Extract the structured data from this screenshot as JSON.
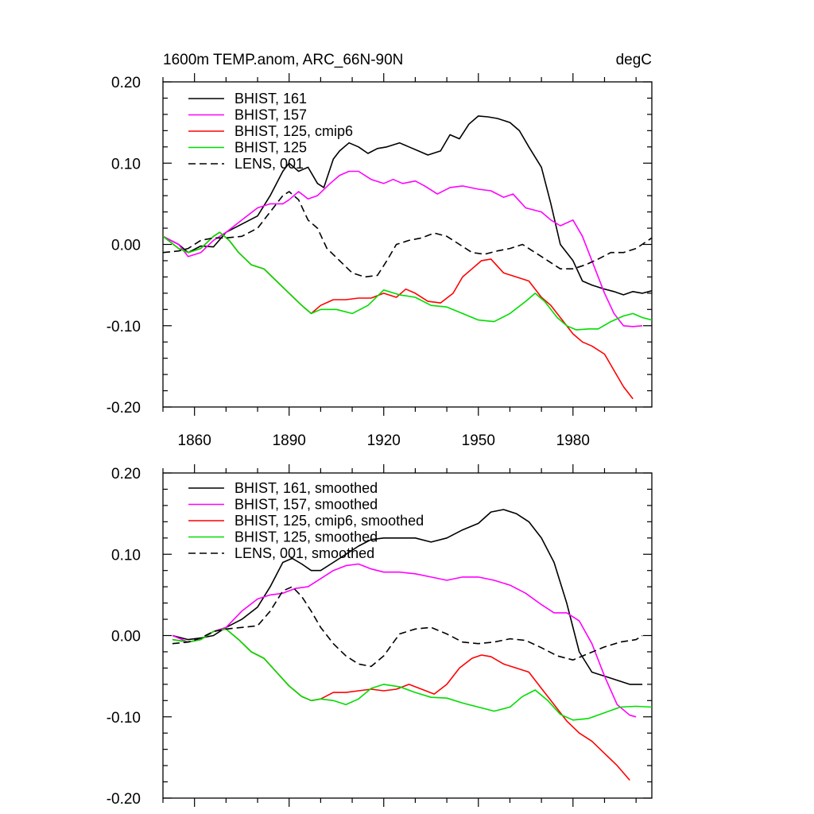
{
  "chart_data": [
    {
      "type": "line",
      "title": "1600m TEMP.anom, ARC_66N-90N",
      "units": "degC",
      "xlabel": "",
      "ylabel": "",
      "xlim": [
        1850,
        2005
      ],
      "ylim": [
        -0.2,
        0.2
      ],
      "xticks": [
        1860,
        1890,
        1920,
        1950,
        1980
      ],
      "xtick_labels": [
        "1860",
        "1890",
        "1920",
        "1950",
        "1980"
      ],
      "yticks": [
        0.2,
        0.1,
        0.0,
        -0.1,
        -0.2
      ],
      "ytick_labels": [
        "0.20",
        "0.10",
        "0.00",
        "-0.10",
        "-0.20"
      ],
      "legend_position": "top-left",
      "series": [
        {
          "name": "BHIST, 161",
          "color": "#000000",
          "dash": "solid",
          "x": [
            1850,
            1855,
            1858,
            1862,
            1866,
            1870,
            1875,
            1880,
            1884,
            1888,
            1890,
            1893,
            1896,
            1899,
            1901,
            1904,
            1906,
            1909,
            1912,
            1915,
            1918,
            1921,
            1925,
            1928,
            1931,
            1934,
            1938,
            1941,
            1944,
            1947,
            1950,
            1953,
            1956,
            1960,
            1963,
            1966,
            1970,
            1973,
            1976,
            1980,
            1983,
            1986,
            1990,
            1993,
            1996,
            1999,
            2002,
            2005
          ],
          "values": [
            0.01,
            0.0,
            -0.01,
            -0.002,
            -0.003,
            0.015,
            0.025,
            0.035,
            0.06,
            0.09,
            0.1,
            0.09,
            0.095,
            0.075,
            0.07,
            0.105,
            0.115,
            0.125,
            0.12,
            0.112,
            0.118,
            0.12,
            0.125,
            0.12,
            0.115,
            0.11,
            0.115,
            0.135,
            0.13,
            0.148,
            0.158,
            0.157,
            0.155,
            0.15,
            0.14,
            0.12,
            0.095,
            0.05,
            0.0,
            -0.02,
            -0.045,
            -0.05,
            -0.055,
            -0.058,
            -0.062,
            -0.058,
            -0.06,
            -0.057
          ]
        },
        {
          "name": "BHIST, 157",
          "color": "#ff00ff",
          "dash": "solid",
          "x": [
            1850,
            1855,
            1858,
            1862,
            1866,
            1870,
            1875,
            1880,
            1884,
            1888,
            1890,
            1893,
            1896,
            1899,
            1903,
            1906,
            1909,
            1912,
            1916,
            1920,
            1923,
            1926,
            1930,
            1933,
            1937,
            1941,
            1945,
            1950,
            1954,
            1958,
            1961,
            1965,
            1970,
            1973,
            1976,
            1980,
            1983,
            1986,
            1990,
            1993,
            1996,
            1999,
            2002
          ],
          "values": [
            0.01,
            0.0,
            -0.015,
            -0.01,
            0.005,
            0.015,
            0.03,
            0.045,
            0.05,
            0.05,
            0.055,
            0.065,
            0.056,
            0.06,
            0.075,
            0.085,
            0.09,
            0.09,
            0.08,
            0.075,
            0.08,
            0.075,
            0.078,
            0.072,
            0.062,
            0.07,
            0.072,
            0.068,
            0.066,
            0.058,
            0.062,
            0.045,
            0.04,
            0.03,
            0.023,
            0.03,
            0.01,
            -0.02,
            -0.06,
            -0.085,
            -0.1,
            -0.101,
            -0.1
          ]
        },
        {
          "name": "BHIST, 125, cmip6",
          "color": "#ff0000",
          "dash": "solid",
          "x": [
            1850,
            1855,
            1858,
            1862,
            1866,
            1868,
            1871,
            1874,
            1878,
            1882,
            1886,
            1890,
            1894,
            1897,
            1900,
            1904,
            1908,
            1912,
            1916,
            1920,
            1924,
            1927,
            1930,
            1934,
            1938,
            1942,
            1945,
            1948,
            1951,
            1954,
            1958,
            1962,
            1966,
            1970,
            1973,
            1976,
            1980,
            1983,
            1986,
            1990,
            1993,
            1996,
            1999
          ],
          "values": [
            0.01,
            -0.005,
            -0.01,
            -0.005,
            0.01,
            0.015,
            0.005,
            -0.01,
            -0.025,
            -0.03,
            -0.045,
            -0.06,
            -0.075,
            -0.085,
            -0.075,
            -0.068,
            -0.068,
            -0.066,
            -0.066,
            -0.06,
            -0.065,
            -0.055,
            -0.06,
            -0.07,
            -0.072,
            -0.06,
            -0.04,
            -0.03,
            -0.02,
            -0.018,
            -0.035,
            -0.04,
            -0.045,
            -0.065,
            -0.075,
            -0.09,
            -0.11,
            -0.12,
            -0.125,
            -0.135,
            -0.155,
            -0.175,
            -0.19
          ]
        },
        {
          "name": "BHIST, 125",
          "color": "#00dd00",
          "dash": "solid",
          "x": [
            1850,
            1855,
            1858,
            1862,
            1866,
            1868,
            1871,
            1874,
            1878,
            1882,
            1886,
            1890,
            1894,
            1897,
            1900,
            1905,
            1910,
            1915,
            1920,
            1925,
            1930,
            1935,
            1940,
            1945,
            1950,
            1955,
            1960,
            1965,
            1968,
            1971,
            1975,
            1978,
            1981,
            1985,
            1988,
            1992,
            1996,
            1999,
            2002,
            2005
          ],
          "values": [
            0.01,
            -0.005,
            -0.01,
            -0.005,
            0.01,
            0.015,
            0.005,
            -0.01,
            -0.025,
            -0.03,
            -0.045,
            -0.06,
            -0.075,
            -0.085,
            -0.08,
            -0.08,
            -0.085,
            -0.075,
            -0.056,
            -0.062,
            -0.065,
            -0.075,
            -0.077,
            -0.085,
            -0.093,
            -0.095,
            -0.085,
            -0.07,
            -0.06,
            -0.07,
            -0.09,
            -0.1,
            -0.105,
            -0.104,
            -0.104,
            -0.095,
            -0.088,
            -0.085,
            -0.09,
            -0.093
          ]
        },
        {
          "name": "LENS, 001",
          "color": "#000000",
          "dash": "dashed",
          "x": [
            1850,
            1855,
            1858,
            1862,
            1866,
            1870,
            1875,
            1880,
            1884,
            1888,
            1890,
            1893,
            1896,
            1899,
            1902,
            1906,
            1910,
            1914,
            1918,
            1921,
            1924,
            1928,
            1932,
            1936,
            1940,
            1944,
            1948,
            1952,
            1956,
            1960,
            1964,
            1968,
            1972,
            1976,
            1980,
            1984,
            1988,
            1992,
            1996,
            2000,
            2005
          ],
          "values": [
            -0.01,
            -0.008,
            -0.005,
            0.005,
            0.008,
            0.008,
            0.01,
            0.02,
            0.04,
            0.06,
            0.065,
            0.055,
            0.03,
            0.02,
            -0.005,
            -0.02,
            -0.035,
            -0.04,
            -0.038,
            -0.02,
            0.0,
            0.005,
            0.008,
            0.014,
            0.01,
            0.0,
            -0.01,
            -0.012,
            -0.008,
            -0.005,
            0.0,
            -0.01,
            -0.02,
            -0.03,
            -0.03,
            -0.025,
            -0.018,
            -0.01,
            -0.01,
            -0.005,
            0.008
          ]
        }
      ]
    },
    {
      "type": "line",
      "title": "",
      "xlabel": "",
      "ylabel": "",
      "xlim": [
        1850,
        2005
      ],
      "ylim": [
        -0.2,
        0.2
      ],
      "xticks": [
        1860,
        1890,
        1920,
        1950,
        1980
      ],
      "xtick_labels": [],
      "yticks": [
        0.2,
        0.1,
        0.0,
        -0.1,
        -0.2
      ],
      "ytick_labels": [
        "0.20",
        "0.10",
        "0.00",
        "-0.10",
        "-0.20"
      ],
      "legend_position": "top-left",
      "series": [
        {
          "name": "BHIST, 161, smoothed",
          "color": "#000000",
          "dash": "solid",
          "x": [
            1853,
            1858,
            1862,
            1866,
            1870,
            1875,
            1880,
            1884,
            1888,
            1891,
            1894,
            1897,
            1900,
            1904,
            1908,
            1912,
            1916,
            1920,
            1925,
            1930,
            1935,
            1940,
            1945,
            1950,
            1954,
            1958,
            1962,
            1966,
            1970,
            1974,
            1978,
            1982,
            1986,
            1990,
            1994,
            1998,
            2002
          ],
          "values": [
            0.0,
            -0.005,
            -0.003,
            0.0,
            0.01,
            0.02,
            0.035,
            0.06,
            0.09,
            0.095,
            0.088,
            0.08,
            0.08,
            0.09,
            0.1,
            0.11,
            0.118,
            0.12,
            0.12,
            0.12,
            0.115,
            0.12,
            0.13,
            0.138,
            0.152,
            0.155,
            0.15,
            0.14,
            0.12,
            0.09,
            0.04,
            -0.02,
            -0.045,
            -0.05,
            -0.055,
            -0.06,
            -0.06
          ]
        },
        {
          "name": "BHIST, 157, smoothed",
          "color": "#ff00ff",
          "dash": "solid",
          "x": [
            1853,
            1858,
            1862,
            1866,
            1870,
            1875,
            1880,
            1884,
            1888,
            1892,
            1896,
            1900,
            1904,
            1908,
            1912,
            1916,
            1920,
            1925,
            1930,
            1935,
            1940,
            1945,
            1950,
            1955,
            1960,
            1965,
            1970,
            1974,
            1978,
            1982,
            1986,
            1990,
            1994,
            1998,
            2000
          ],
          "values": [
            0.0,
            -0.008,
            -0.005,
            0.005,
            0.01,
            0.03,
            0.045,
            0.05,
            0.052,
            0.058,
            0.06,
            0.07,
            0.08,
            0.086,
            0.088,
            0.082,
            0.078,
            0.078,
            0.076,
            0.072,
            0.068,
            0.072,
            0.072,
            0.068,
            0.062,
            0.052,
            0.038,
            0.028,
            0.028,
            0.018,
            -0.01,
            -0.05,
            -0.085,
            -0.098,
            -0.1
          ]
        },
        {
          "name": "BHIST, 125, cmip6, smoothed",
          "color": "#ff0000",
          "dash": "solid",
          "x": [
            1853,
            1858,
            1862,
            1866,
            1870,
            1874,
            1878,
            1882,
            1886,
            1890,
            1894,
            1897,
            1900,
            1904,
            1908,
            1912,
            1916,
            1920,
            1924,
            1928,
            1932,
            1936,
            1940,
            1944,
            1948,
            1951,
            1954,
            1958,
            1962,
            1966,
            1970,
            1974,
            1978,
            1982,
            1986,
            1990,
            1994,
            1998
          ],
          "values": [
            -0.005,
            -0.008,
            -0.005,
            0.005,
            0.008,
            -0.005,
            -0.02,
            -0.028,
            -0.045,
            -0.062,
            -0.075,
            -0.08,
            -0.078,
            -0.07,
            -0.07,
            -0.068,
            -0.066,
            -0.068,
            -0.066,
            -0.06,
            -0.066,
            -0.072,
            -0.06,
            -0.04,
            -0.028,
            -0.024,
            -0.026,
            -0.035,
            -0.04,
            -0.045,
            -0.065,
            -0.085,
            -0.105,
            -0.12,
            -0.13,
            -0.145,
            -0.16,
            -0.178
          ]
        },
        {
          "name": "BHIST, 125, smoothed",
          "color": "#00dd00",
          "dash": "solid",
          "x": [
            1853,
            1858,
            1862,
            1866,
            1870,
            1874,
            1878,
            1882,
            1886,
            1890,
            1894,
            1897,
            1900,
            1904,
            1908,
            1912,
            1916,
            1920,
            1925,
            1930,
            1935,
            1940,
            1945,
            1950,
            1955,
            1960,
            1964,
            1968,
            1972,
            1976,
            1980,
            1985,
            1990,
            1995,
            2000,
            2005
          ],
          "values": [
            -0.005,
            -0.008,
            -0.005,
            0.005,
            0.008,
            -0.005,
            -0.02,
            -0.028,
            -0.045,
            -0.062,
            -0.075,
            -0.08,
            -0.078,
            -0.08,
            -0.085,
            -0.078,
            -0.065,
            -0.06,
            -0.063,
            -0.07,
            -0.076,
            -0.077,
            -0.083,
            -0.088,
            -0.093,
            -0.088,
            -0.075,
            -0.067,
            -0.08,
            -0.097,
            -0.104,
            -0.102,
            -0.095,
            -0.088,
            -0.087,
            -0.088
          ]
        },
        {
          "name": "LENS, 001, smoothed",
          "color": "#000000",
          "dash": "dashed",
          "x": [
            1853,
            1858,
            1862,
            1866,
            1870,
            1875,
            1880,
            1884,
            1888,
            1891,
            1894,
            1897,
            1900,
            1904,
            1908,
            1912,
            1916,
            1920,
            1925,
            1930,
            1935,
            1940,
            1945,
            1950,
            1955,
            1960,
            1965,
            1970,
            1975,
            1980,
            1985,
            1990,
            1995,
            2000,
            2002
          ],
          "values": [
            -0.01,
            -0.008,
            -0.003,
            0.005,
            0.008,
            0.01,
            0.012,
            0.03,
            0.055,
            0.06,
            0.048,
            0.03,
            0.01,
            -0.01,
            -0.025,
            -0.035,
            -0.038,
            -0.025,
            0.002,
            0.008,
            0.01,
            0.002,
            -0.008,
            -0.01,
            -0.008,
            -0.004,
            -0.006,
            -0.015,
            -0.025,
            -0.03,
            -0.022,
            -0.014,
            -0.008,
            -0.005,
            0.0
          ]
        }
      ]
    }
  ]
}
